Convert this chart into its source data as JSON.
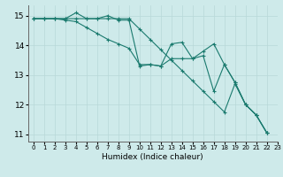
{
  "xlabel": "Humidex (Indice chaleur)",
  "xlim": [
    -0.5,
    23
  ],
  "ylim": [
    10.75,
    15.35
  ],
  "yticks": [
    11,
    12,
    13,
    14,
    15
  ],
  "xticks": [
    0,
    1,
    2,
    3,
    4,
    5,
    6,
    7,
    8,
    9,
    10,
    11,
    12,
    13,
    14,
    15,
    16,
    17,
    18,
    19,
    20,
    21,
    22,
    23
  ],
  "bg_color": "#ceeaea",
  "grid_color": "#b8d8d8",
  "line_color": "#1a7a6e",
  "series": [
    [
      14.9,
      14.9,
      14.9,
      14.9,
      14.9,
      14.9,
      14.9,
      14.9,
      14.9,
      14.9,
      14.55,
      14.2,
      13.85,
      13.5,
      13.15,
      12.8,
      12.45,
      12.1,
      11.75,
      12.7,
      12.0,
      11.65,
      11.05
    ],
    [
      14.9,
      14.9,
      14.9,
      14.9,
      15.1,
      14.9,
      14.9,
      15.0,
      14.85,
      14.85,
      13.3,
      13.35,
      13.3,
      14.05,
      14.1,
      13.55,
      13.65,
      12.45,
      13.35,
      12.75,
      12.0,
      11.65,
      11.05
    ],
    [
      14.9,
      14.9,
      14.9,
      14.85,
      14.8,
      14.6,
      14.4,
      14.2,
      14.05,
      13.9,
      13.35,
      13.35,
      13.3,
      13.55,
      13.55,
      13.55,
      13.8,
      14.05,
      13.35,
      12.75,
      12.0,
      11.65,
      11.05
    ]
  ]
}
